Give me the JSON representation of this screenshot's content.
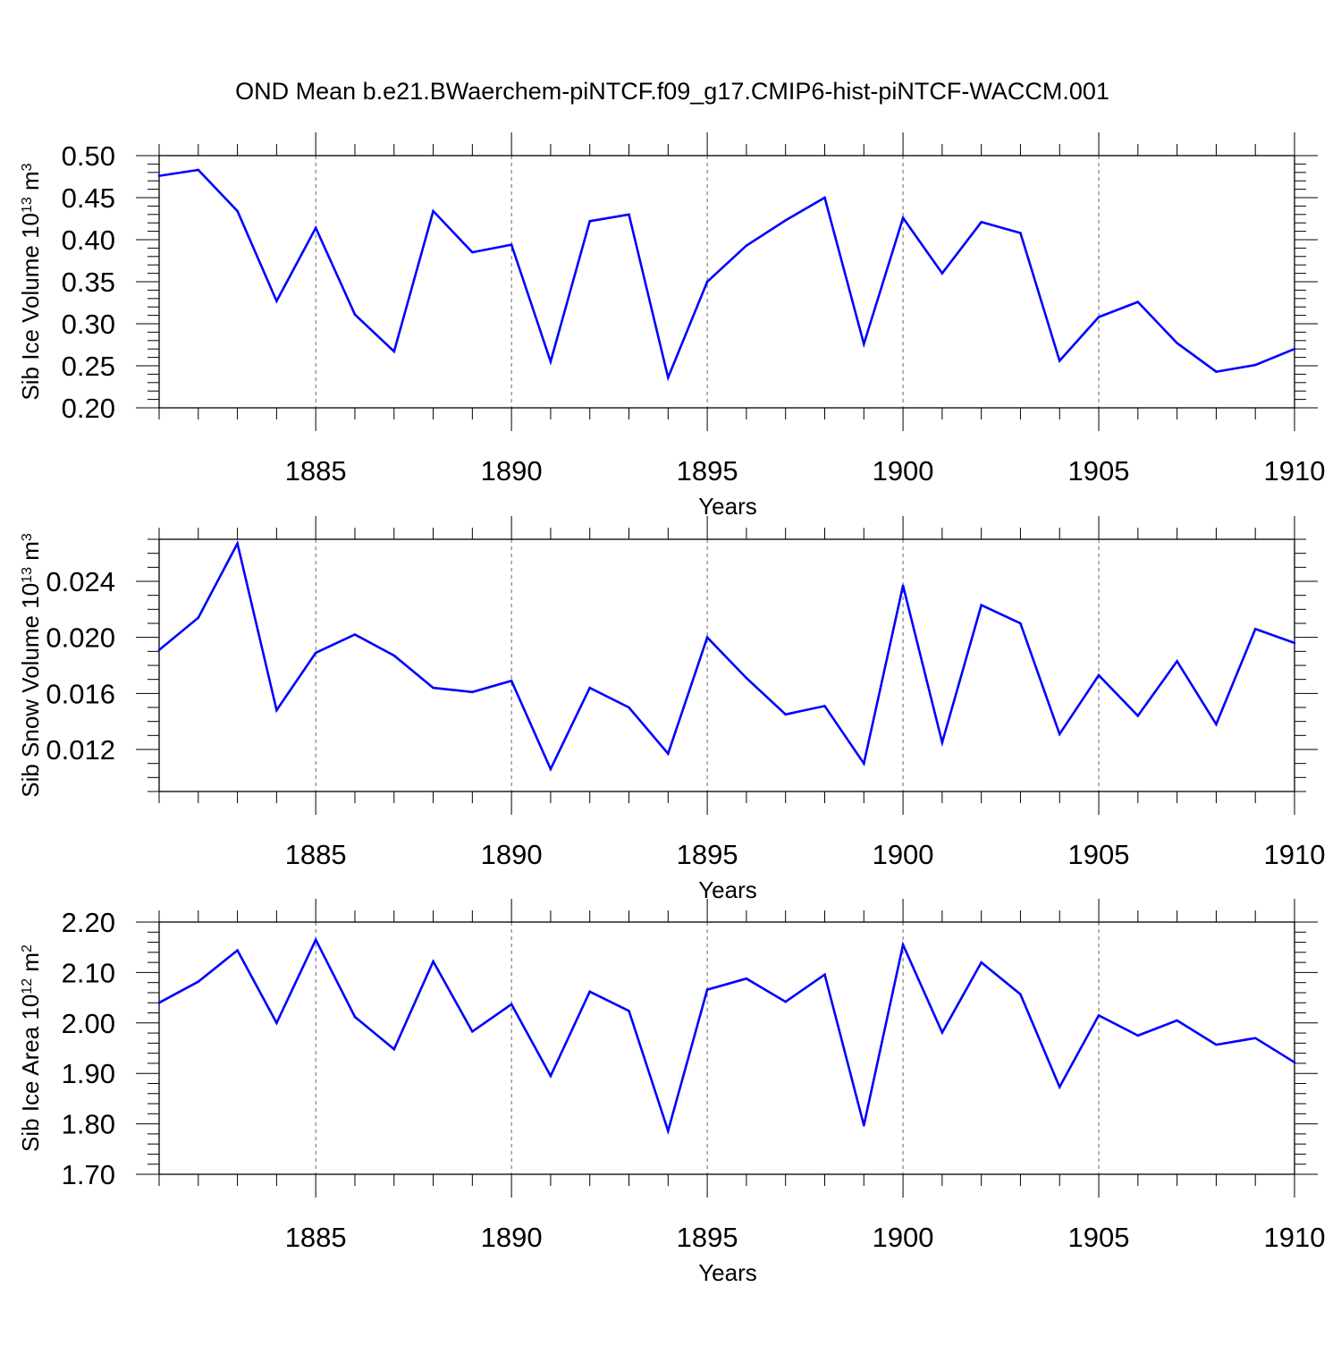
{
  "title": "OND Mean b.e21.BWaerchem-piNTCF.f09_g17.CMIP6-hist-piNTCF-WACCM.001",
  "colors": {
    "line": "#0000ff",
    "axis": "#000000",
    "grid": "#000000",
    "background": "#ffffff"
  },
  "chart_data": [
    {
      "type": "line",
      "xlabel": "Years",
      "ylabel": "Sib Ice Volume 10",
      "ylabel_exp": "13",
      "ylabel_unit": " m",
      "ylabel_unit_exp": "3",
      "xlim": [
        1881,
        1910
      ],
      "ylim": [
        0.2,
        0.5
      ],
      "x_ticks": [
        1885,
        1890,
        1895,
        1900,
        1905,
        1910
      ],
      "x_tick_labels": [
        "1885",
        "1890",
        "1895",
        "1900",
        "1905",
        "1910"
      ],
      "y_ticks": [
        0.2,
        0.25,
        0.3,
        0.35,
        0.4,
        0.45,
        0.5
      ],
      "y_tick_labels": [
        "0.20",
        "0.25",
        "0.30",
        "0.35",
        "0.40",
        "0.45",
        "0.50"
      ],
      "y_minor_step": 0.01,
      "grid": "vertical dashed at major x ticks",
      "x": [
        1881,
        1882,
        1883,
        1884,
        1885,
        1886,
        1887,
        1888,
        1889,
        1890,
        1891,
        1892,
        1893,
        1894,
        1895,
        1896,
        1897,
        1898,
        1899,
        1900,
        1901,
        1902,
        1903,
        1904,
        1905,
        1906,
        1907,
        1908,
        1909,
        1910
      ],
      "series": [
        {
          "values": [
            0.476,
            0.483,
            0.434,
            0.327,
            0.414,
            0.311,
            0.267,
            0.434,
            0.385,
            0.394,
            0.255,
            0.422,
            0.43,
            0.236,
            0.35,
            0.393,
            0.423,
            0.45,
            0.276,
            0.426,
            0.36,
            0.421,
            0.408,
            0.256,
            0.308,
            0.326,
            0.277,
            0.243,
            0.251,
            0.27
          ]
        }
      ]
    },
    {
      "type": "line",
      "xlabel": "Years",
      "ylabel": "Sib Snow Volume 10",
      "ylabel_exp": "13",
      "ylabel_unit": " m",
      "ylabel_unit_exp": "3",
      "xlim": [
        1881,
        1910
      ],
      "ylim": [
        0.009,
        0.027
      ],
      "x_ticks": [
        1885,
        1890,
        1895,
        1900,
        1905,
        1910
      ],
      "x_tick_labels": [
        "1885",
        "1890",
        "1895",
        "1900",
        "1905",
        "1910"
      ],
      "y_ticks": [
        0.012,
        0.016,
        0.02,
        0.024
      ],
      "y_tick_labels": [
        "0.012",
        "0.016",
        "0.020",
        "0.024"
      ],
      "y_minor_step": 0.001,
      "grid": "vertical dashed at major x ticks",
      "x": [
        1881,
        1882,
        1883,
        1884,
        1885,
        1886,
        1887,
        1888,
        1889,
        1890,
        1891,
        1892,
        1893,
        1894,
        1895,
        1896,
        1897,
        1898,
        1899,
        1900,
        1901,
        1902,
        1903,
        1904,
        1905,
        1906,
        1907,
        1908,
        1909,
        1910
      ],
      "series": [
        {
          "values": [
            0.0191,
            0.0214,
            0.0267,
            0.0148,
            0.0189,
            0.0202,
            0.0187,
            0.0164,
            0.0161,
            0.0169,
            0.0106,
            0.0164,
            0.015,
            0.0117,
            0.02,
            0.0171,
            0.0145,
            0.0151,
            0.011,
            0.0237,
            0.0125,
            0.0223,
            0.021,
            0.0131,
            0.0173,
            0.0144,
            0.0183,
            0.0138,
            0.0206,
            0.0196
          ]
        }
      ]
    },
    {
      "type": "line",
      "xlabel": "Years",
      "ylabel": "Sib Ice Area 10",
      "ylabel_exp": "12",
      "ylabel_unit": " m",
      "ylabel_unit_exp": "2",
      "xlim": [
        1881,
        1910
      ],
      "ylim": [
        1.7,
        2.2
      ],
      "x_ticks": [
        1885,
        1890,
        1895,
        1900,
        1905,
        1910
      ],
      "x_tick_labels": [
        "1885",
        "1890",
        "1895",
        "1900",
        "1905",
        "1910"
      ],
      "y_ticks": [
        1.7,
        1.8,
        1.9,
        2.0,
        2.1,
        2.2
      ],
      "y_tick_labels": [
        "1.70",
        "1.80",
        "1.90",
        "2.00",
        "2.10",
        "2.20"
      ],
      "y_minor_step": 0.02,
      "grid": "vertical dashed at major x ticks",
      "x": [
        1881,
        1882,
        1883,
        1884,
        1885,
        1886,
        1887,
        1888,
        1889,
        1890,
        1891,
        1892,
        1893,
        1894,
        1895,
        1896,
        1897,
        1898,
        1899,
        1900,
        1901,
        1902,
        1903,
        1904,
        1905,
        1906,
        1907,
        1908,
        1909,
        1910
      ],
      "series": [
        {
          "values": [
            2.04,
            2.082,
            2.144,
            2.0,
            2.165,
            2.012,
            1.948,
            2.122,
            1.983,
            2.037,
            1.895,
            2.062,
            2.024,
            1.786,
            2.066,
            2.088,
            2.042,
            2.096,
            1.797,
            2.155,
            1.981,
            2.12,
            2.057,
            1.873,
            2.015,
            1.975,
            2.005,
            1.957,
            1.97,
            1.922
          ]
        }
      ]
    }
  ]
}
